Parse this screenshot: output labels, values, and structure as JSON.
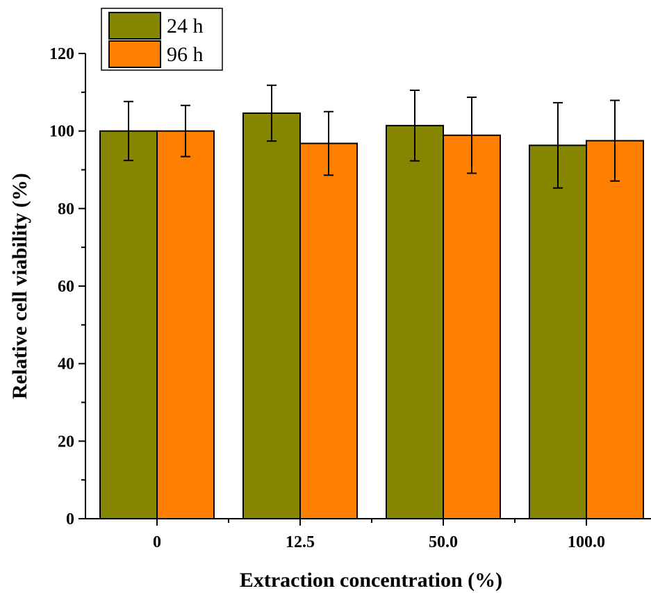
{
  "chart_data": {
    "type": "bar",
    "title": "",
    "xlabel": "Extraction concentration (%)",
    "ylabel": "Relative cell viability (%)",
    "categories": [
      "0",
      "12.5",
      "50.0",
      "100.0"
    ],
    "ylim": [
      0,
      120
    ],
    "yticks": [
      "0",
      "20",
      "40",
      "60",
      "80",
      "100",
      "120"
    ],
    "grid": false,
    "legend_position": "top-left",
    "series": [
      {
        "name": "24 h",
        "color": "#868600",
        "values": [
          100.0,
          104.6,
          101.4,
          96.3
        ],
        "errors": [
          7.6,
          7.2,
          9.1,
          11.0
        ]
      },
      {
        "name": "96 h",
        "color": "#ff8000",
        "values": [
          100.0,
          96.8,
          98.9,
          97.5
        ],
        "errors": [
          6.6,
          8.2,
          9.8,
          10.4
        ]
      }
    ]
  }
}
